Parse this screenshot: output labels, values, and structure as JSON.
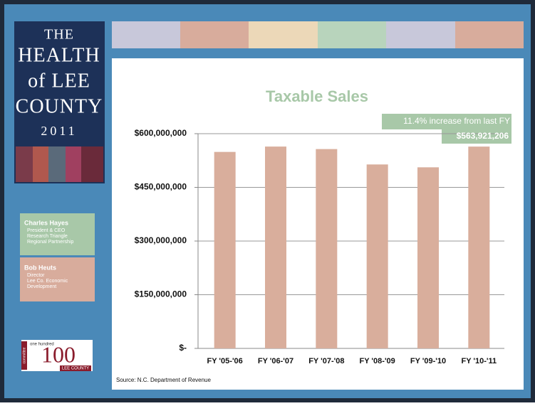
{
  "sidebar": {
    "logo_lines": [
      "THE",
      "HEALTH",
      "of LEE",
      "COUNTY",
      "2011"
    ],
    "contacts": [
      {
        "name": "Charles Hayes",
        "lines": [
          "President & CEO",
          "Research Triangle",
          "Regional Partnership"
        ]
      },
      {
        "name": "Bob Heuts",
        "lines": [
          "Director",
          "Lee Co. Economic",
          "Development"
        ]
      }
    ],
    "badge": {
      "top": "one hundred",
      "number": "100",
      "bottom": "LEE COUNTY",
      "side": "committee"
    }
  },
  "chart_data": {
    "type": "bar",
    "title": "Taxable Sales",
    "categories": [
      "FY '05-'06",
      "FY '06-'07",
      "FY '07-'08",
      "FY '08-'09",
      "FY '09-'10",
      "FY '10-'11"
    ],
    "values": [
      549000000,
      564000000,
      557000000,
      514000000,
      506000000,
      563921206
    ],
    "value_labels": [
      null,
      null,
      null,
      null,
      null,
      "$563,921,206"
    ],
    "annotation": "11.4% increase from last FY",
    "color": "#d9ae9c",
    "ylim": [
      0,
      600000000
    ],
    "yticks": [
      {
        "value": 0,
        "label": "$-"
      },
      {
        "value": 150000000,
        "label": "$150,000,000"
      },
      {
        "value": 300000000,
        "label": "$300,000,000"
      },
      {
        "value": 450000000,
        "label": "$450,000,000"
      },
      {
        "value": 600000000,
        "label": "$600,000,000"
      }
    ],
    "grid": true,
    "source": "Source: N.C. Department of Revenue"
  }
}
